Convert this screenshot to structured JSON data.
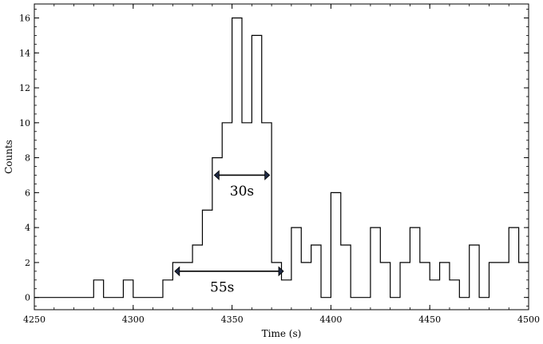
{
  "chart_data": {
    "type": "line",
    "drawstyle": "steps-post",
    "xlabel": "Time (s)",
    "ylabel": "Counts",
    "xlim": [
      4250,
      4500
    ],
    "ylim": [
      -0.7,
      16.8
    ],
    "xticks": [
      4250,
      4300,
      4350,
      4400,
      4450,
      4500
    ],
    "yticks": [
      0,
      2,
      4,
      6,
      8,
      10,
      12,
      14,
      16
    ],
    "bin_width": 5,
    "series": [
      {
        "x": [
          4250,
          4255,
          4260,
          4265,
          4270,
          4275,
          4280,
          4285,
          4290,
          4295,
          4300,
          4305,
          4310,
          4315,
          4320,
          4325,
          4330,
          4335,
          4340,
          4345,
          4350,
          4355,
          4360,
          4365,
          4370,
          4375,
          4380,
          4385,
          4390,
          4395,
          4400,
          4405,
          4410,
          4415,
          4420,
          4425,
          4430,
          4435,
          4440,
          4445,
          4450,
          4455,
          4460,
          4465,
          4470,
          4475,
          4480,
          4485,
          4490,
          4495,
          4500
        ],
        "values": [
          0,
          0,
          0,
          0,
          0,
          0,
          1,
          0,
          0,
          1,
          0,
          0,
          0,
          1,
          2,
          2,
          3,
          5,
          8,
          10,
          16,
          10,
          15,
          10,
          2,
          1,
          4,
          2,
          3,
          0,
          6,
          3,
          0,
          0,
          4,
          2,
          0,
          2,
          4,
          2,
          1,
          2,
          1,
          0,
          3,
          0,
          2,
          2,
          4,
          2,
          2
        ]
      }
    ],
    "annotations": [
      {
        "label": "30s",
        "x_start": 4341,
        "x_end": 4369,
        "y": 7,
        "label_x": 4355,
        "label_y": 6.1
      },
      {
        "label": "55s",
        "x_start": 4321,
        "x_end": 4376,
        "y": 1.5,
        "label_x": 4345,
        "label_y": 0.6
      }
    ],
    "grid": false,
    "colors": {
      "line": "#000000",
      "arrow": "#000000",
      "arrowhead": "#1f2a44"
    }
  }
}
